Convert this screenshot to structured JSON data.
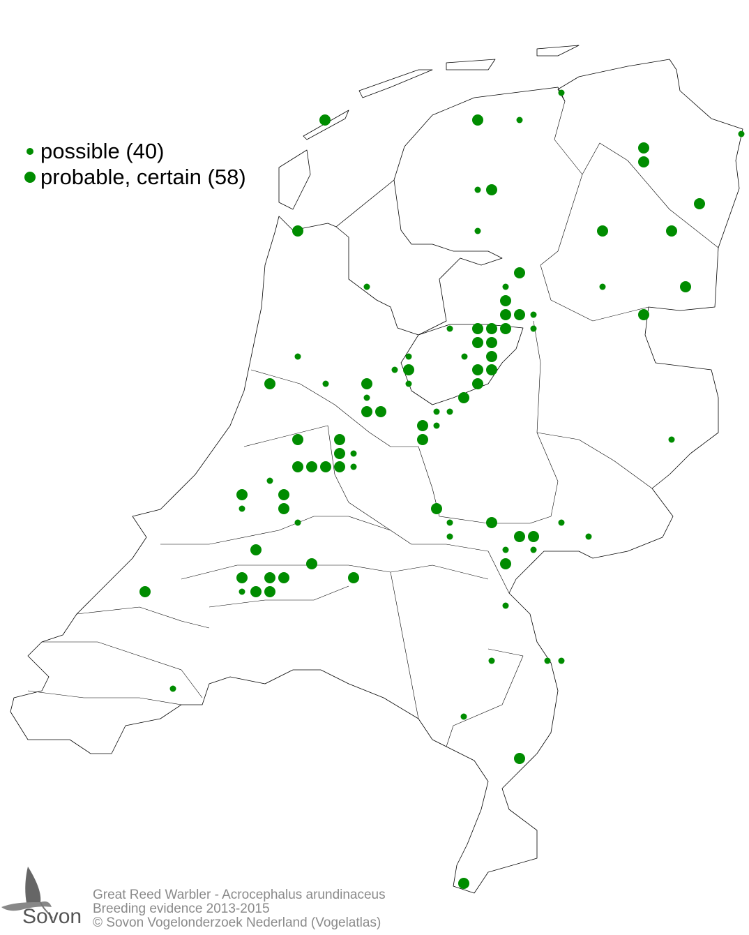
{
  "legend": {
    "possible_label": "possible (40)",
    "probable_label": "probable, certain (58)"
  },
  "colors": {
    "dot": "#008c00",
    "outline": "#000000",
    "footer_text": "#8a8a8a"
  },
  "footer": {
    "line1": "Great Reed Warbler - Acrocephalus arundinaceus",
    "line2": "Breeding evidence 2013-2015",
    "line3": "© Sovon Vogelonderzoek Nederland (Vogelatlas)"
  },
  "logo": {
    "text": "Sovon",
    "icon": "swallow-icon"
  },
  "observations": {
    "categories": [
      "possible",
      "probable, certain"
    ]
  }
}
